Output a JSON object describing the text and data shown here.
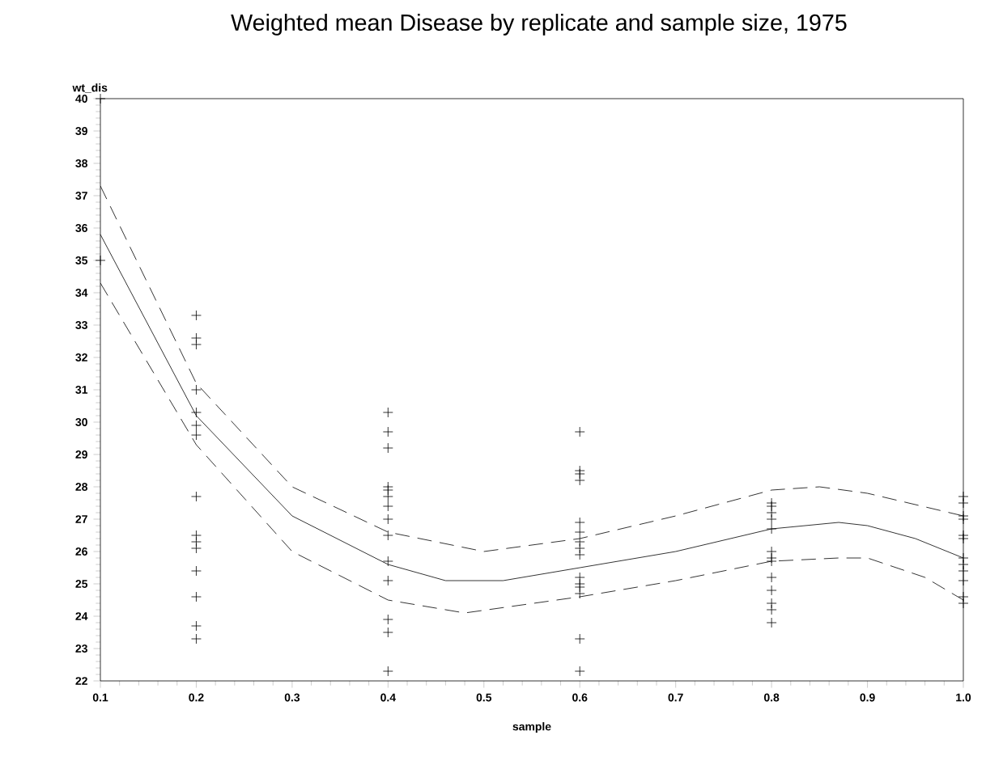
{
  "chart_data": {
    "type": "scatter",
    "title": "Weighted mean Disease by replicate and sample size, 1975",
    "xlabel": "sample",
    "ylabel": "wt_dis",
    "xlim": [
      0.1,
      1.0
    ],
    "ylim": [
      22,
      40
    ],
    "xticks": [
      0.1,
      0.2,
      0.3,
      0.4,
      0.5,
      0.6,
      0.7,
      0.8,
      0.9,
      {
        "value": 1.0,
        "label": "1.0"
      }
    ],
    "yticks": [
      22,
      23,
      24,
      25,
      26,
      27,
      28,
      29,
      30,
      31,
      32,
      33,
      34,
      35,
      36,
      37,
      38,
      39,
      40
    ],
    "grid": false,
    "series": [
      {
        "marker": "cross",
        "color": "#000000",
        "x": [
          0.1,
          0.1,
          0.2,
          0.2,
          0.2,
          0.2,
          0.2,
          0.2,
          0.2,
          0.2,
          0.2,
          0.2,
          0.2,
          0.2,
          0.2,
          0.2,
          0.2,
          0.4,
          0.4,
          0.4,
          0.4,
          0.4,
          0.4,
          0.4,
          0.4,
          0.4,
          0.4,
          0.4,
          0.4,
          0.4,
          0.4,
          0.6,
          0.6,
          0.6,
          0.6,
          0.6,
          0.6,
          0.6,
          0.6,
          0.6,
          0.6,
          0.6,
          0.6,
          0.6,
          0.6,
          0.6,
          0.8,
          0.8,
          0.8,
          0.8,
          0.8,
          0.8,
          0.8,
          0.8,
          0.8,
          0.8,
          0.8,
          0.8,
          0.8,
          1.0,
          1.0,
          1.0,
          1.0,
          1.0,
          1.0,
          1.0,
          1.0,
          1.0,
          1.0,
          1.0,
          1.0
        ],
        "values": [
          40,
          35,
          33.3,
          32.6,
          32.4,
          31.0,
          30.3,
          29.9,
          29.6,
          27.7,
          26.5,
          26.3,
          26.1,
          25.4,
          24.6,
          23.7,
          23.3,
          30.3,
          29.7,
          29.2,
          28.0,
          27.9,
          27.7,
          27.4,
          27.0,
          26.5,
          25.7,
          25.1,
          23.9,
          23.5,
          22.3,
          29.7,
          28.5,
          28.4,
          28.2,
          26.9,
          26.6,
          26.3,
          26.1,
          25.9,
          25.2,
          25.0,
          24.9,
          24.7,
          23.3,
          22.3,
          27.5,
          27.4,
          27.2,
          27.0,
          26.7,
          26.0,
          25.8,
          25.7,
          25.2,
          24.8,
          24.4,
          24.2,
          23.8,
          27.7,
          27.5,
          27.1,
          27.0,
          26.5,
          26.4,
          25.8,
          25.6,
          25.4,
          25.1,
          24.6,
          24.4
        ]
      },
      {
        "type": "line",
        "marker": "none",
        "line_style": "dashed",
        "color": "#000000",
        "x": [
          0.1,
          0.2,
          0.3,
          0.4,
          0.5,
          0.6,
          0.7,
          0.8,
          0.85,
          0.9,
          1.0
        ],
        "values": [
          37.3,
          31.2,
          28.0,
          26.6,
          26.0,
          26.4,
          27.1,
          27.9,
          28.0,
          27.8,
          27.1
        ]
      },
      {
        "type": "line",
        "marker": "none",
        "line_style": "solid",
        "color": "#000000",
        "x": [
          0.1,
          0.2,
          0.3,
          0.4,
          0.46,
          0.52,
          0.6,
          0.7,
          0.8,
          0.87,
          0.9,
          0.95,
          1.0
        ],
        "values": [
          35.8,
          30.2,
          27.1,
          25.6,
          25.1,
          25.1,
          25.5,
          26.0,
          26.7,
          26.9,
          26.8,
          26.4,
          25.8
        ]
      },
      {
        "type": "line",
        "marker": "none",
        "line_style": "dashed",
        "color": "#000000",
        "x": [
          0.1,
          0.2,
          0.3,
          0.4,
          0.48,
          0.6,
          0.7,
          0.8,
          0.87,
          0.9,
          0.96,
          1.0
        ],
        "values": [
          34.3,
          29.3,
          26.0,
          24.5,
          24.1,
          24.6,
          25.1,
          25.7,
          25.8,
          25.8,
          25.2,
          24.5
        ]
      }
    ]
  }
}
